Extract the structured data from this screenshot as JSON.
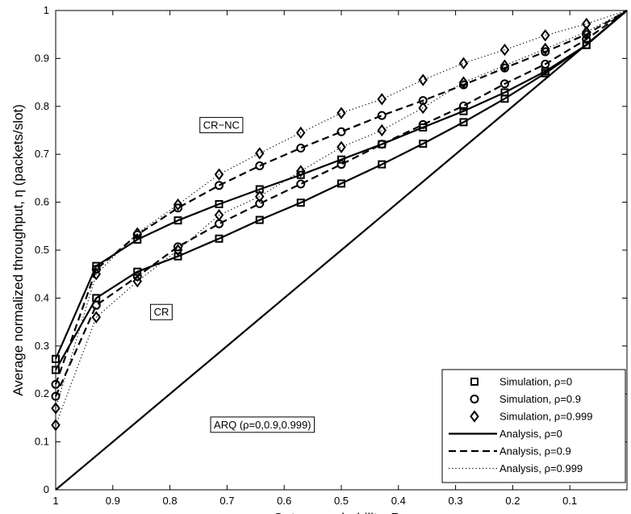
{
  "chart_data": {
    "type": "line",
    "xlabel": "Outage probability, P",
    "xlabel_sub": "ss",
    "ylabel": "Average normalized throughput, η (packets/slot)",
    "xlim": [
      1,
      0
    ],
    "ylim": [
      0,
      1
    ],
    "x_reversed": true,
    "x_ticks": [
      1,
      0.9,
      0.8,
      0.7,
      0.6,
      0.5,
      0.4,
      0.3,
      0.2,
      0.1
    ],
    "x_tick_labels": [
      "1",
      "0.9",
      "0.8",
      "0.7",
      "0.6",
      "0.5",
      "0.4",
      "0.3",
      "0.2",
      "0.1"
    ],
    "y_ticks": [
      0,
      0.1,
      0.2,
      0.3,
      0.4,
      0.5,
      0.6,
      0.7,
      0.8,
      0.9,
      1
    ],
    "y_tick_labels": [
      "0",
      "0.1",
      "0.2",
      "0.3",
      "0.4",
      "0.5",
      "0.6",
      "0.7",
      "0.8",
      "0.9",
      "1"
    ],
    "grid": false,
    "legend_position": "bottom-right",
    "x": [
      1,
      0.929,
      0.857,
      0.786,
      0.714,
      0.643,
      0.571,
      0.5,
      0.429,
      0.357,
      0.286,
      0.214,
      0.143,
      0.071,
      0
    ],
    "series": [
      {
        "name": "CR-NC ρ=0",
        "group": "CR-NC",
        "rho_index": 0,
        "style": "solid",
        "values": [
          0.273,
          0.467,
          0.522,
          0.562,
          0.596,
          0.627,
          0.657,
          0.689,
          0.721,
          0.756,
          0.79,
          0.829,
          0.873,
          0.928,
          1.0
        ]
      },
      {
        "name": "CR-NC ρ=0.9",
        "group": "CR-NC",
        "rho_index": 1,
        "style": "dashed",
        "values": [
          0.22,
          0.46,
          0.532,
          0.588,
          0.635,
          0.676,
          0.713,
          0.747,
          0.781,
          0.812,
          0.845,
          0.88,
          0.914,
          0.95,
          1.0
        ]
      },
      {
        "name": "CR-NC ρ=0.999",
        "group": "CR-NC",
        "rho_index": 2,
        "style": "dotted",
        "values": [
          0.17,
          0.45,
          0.535,
          0.595,
          0.658,
          0.702,
          0.745,
          0.786,
          0.815,
          0.855,
          0.89,
          0.918,
          0.948,
          0.972,
          1.0
        ]
      },
      {
        "name": "CR ρ=0",
        "group": "CR",
        "rho_index": 0,
        "style": "solid",
        "values": [
          0.25,
          0.4,
          0.455,
          0.487,
          0.524,
          0.563,
          0.599,
          0.639,
          0.679,
          0.722,
          0.767,
          0.816,
          0.869,
          0.928,
          1.0
        ]
      },
      {
        "name": "CR ρ=0.9",
        "group": "CR",
        "rho_index": 1,
        "style": "dashed",
        "values": [
          0.195,
          0.385,
          0.445,
          0.507,
          0.555,
          0.597,
          0.638,
          0.679,
          0.721,
          0.762,
          0.801,
          0.847,
          0.888,
          0.94,
          1.0
        ]
      },
      {
        "name": "CR ρ=0.999",
        "group": "CR",
        "rho_index": 2,
        "style": "dotted",
        "values": [
          0.135,
          0.36,
          0.435,
          0.5,
          0.573,
          0.612,
          0.665,
          0.715,
          0.75,
          0.797,
          0.85,
          0.885,
          0.92,
          0.955,
          1.0
        ]
      },
      {
        "name": "ARQ",
        "group": "ARQ",
        "rho_index": 0,
        "style": "solid",
        "values": [
          0,
          0.071,
          0.143,
          0.214,
          0.286,
          0.357,
          0.429,
          0.5,
          0.571,
          0.643,
          0.714,
          0.786,
          0.857,
          0.929,
          1.0
        ]
      }
    ],
    "annotations": [
      {
        "text": "CR−NC",
        "x": 0.71,
        "y": 0.76
      },
      {
        "text": "CR",
        "x": 0.815,
        "y": 0.37
      },
      {
        "text": "ARQ (ρ=0,0.9,0.999)",
        "x": 0.638,
        "y": 0.135
      }
    ],
    "legend": [
      {
        "label": "Simulation, ρ=0",
        "marker": "square",
        "line": "none"
      },
      {
        "label": "Simulation, ρ=0.9",
        "marker": "circle",
        "line": "none"
      },
      {
        "label": "Simulation, ρ=0.999",
        "marker": "diamond",
        "line": "none"
      },
      {
        "label": "Analysis, ρ=0",
        "marker": "none",
        "line": "solid"
      },
      {
        "label": "Analysis, ρ=0.9",
        "marker": "none",
        "line": "dashed"
      },
      {
        "label": "Analysis, ρ=0.999",
        "marker": "none",
        "line": "dotted"
      }
    ]
  }
}
